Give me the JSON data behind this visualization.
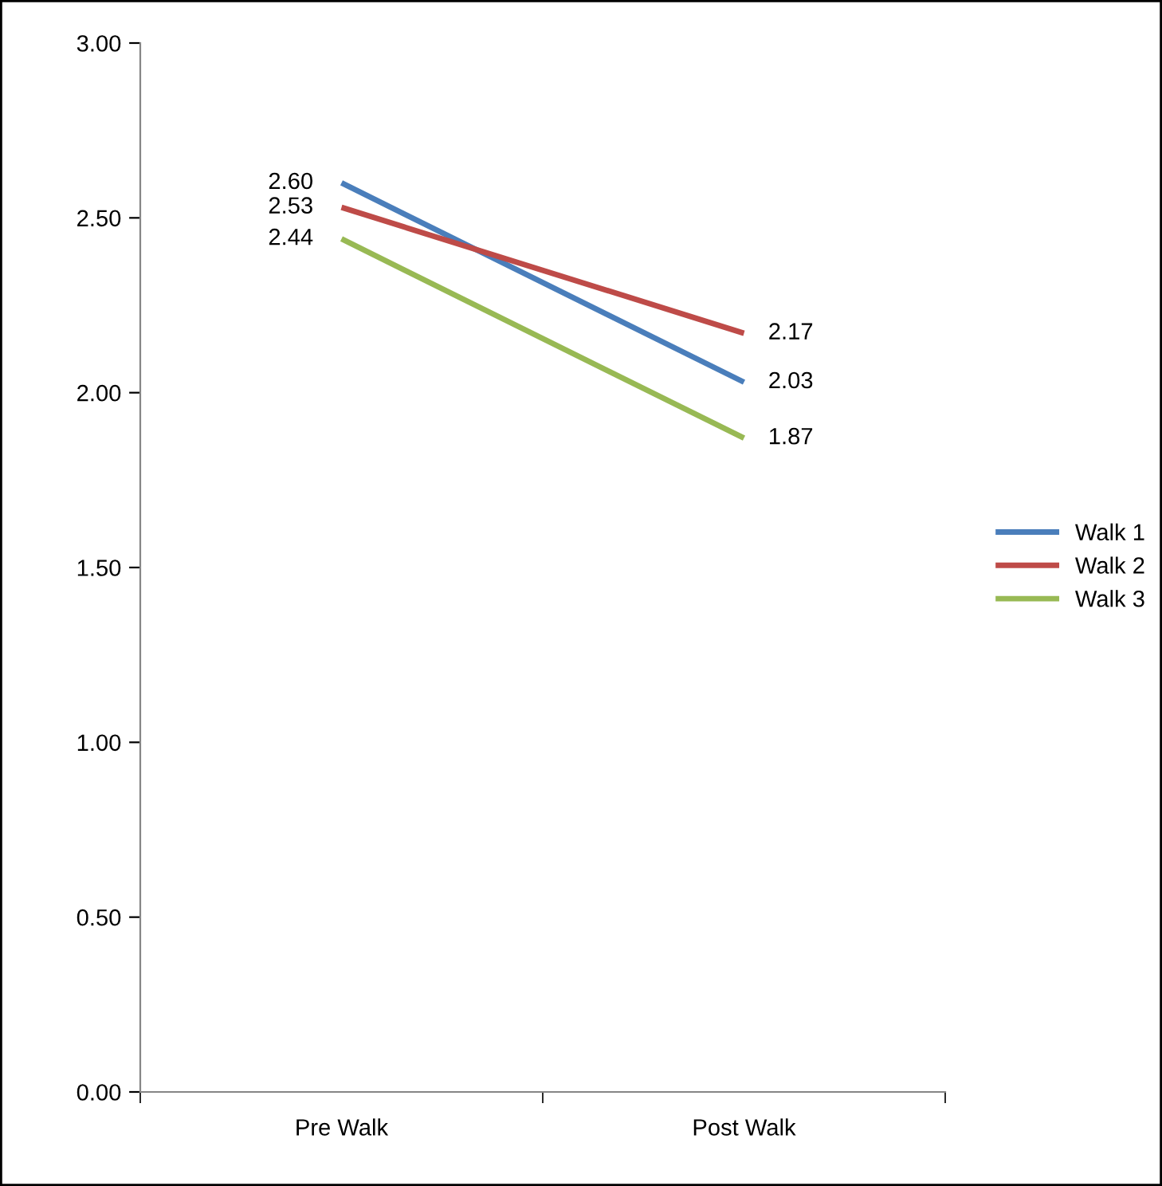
{
  "chart_data": {
    "type": "line",
    "categories": [
      "Pre Walk",
      "Post Walk"
    ],
    "series": [
      {
        "name": "Walk 1",
        "color": "#4a7ebb",
        "values": [
          2.6,
          2.03
        ],
        "value_labels": [
          "2.60",
          "2.03"
        ]
      },
      {
        "name": "Walk 2",
        "color": "#be4b48",
        "values": [
          2.53,
          2.17
        ],
        "value_labels": [
          "2.53",
          "2.17"
        ]
      },
      {
        "name": "Walk 3",
        "color": "#98b954",
        "values": [
          2.44,
          1.87
        ],
        "value_labels": [
          "2.44",
          "1.87"
        ]
      }
    ],
    "ylim": [
      0,
      3
    ],
    "yticks": [
      {
        "value": 0,
        "label": "0.00"
      },
      {
        "value": 0.5,
        "label": "0.50"
      },
      {
        "value": 1,
        "label": "1.00"
      },
      {
        "value": 1.5,
        "label": "1.50"
      },
      {
        "value": 2,
        "label": "2.00"
      },
      {
        "value": 2.5,
        "label": "2.50"
      },
      {
        "value": 3,
        "label": "3.00"
      }
    ],
    "grid": false,
    "legend": "right",
    "marker": "none",
    "line_style": "solid"
  }
}
